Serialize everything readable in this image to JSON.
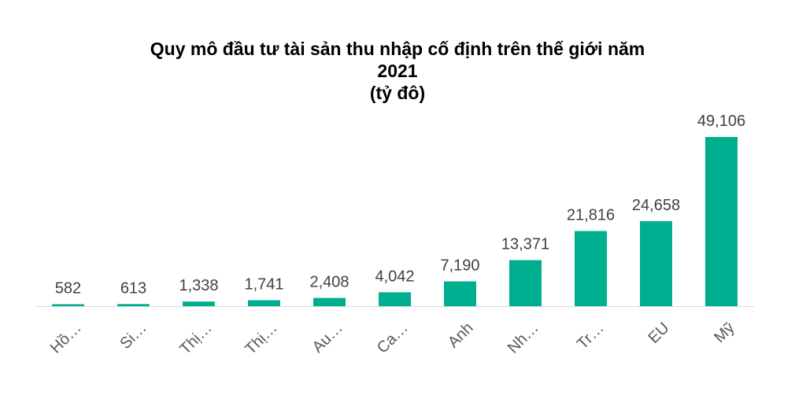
{
  "chart_data": {
    "type": "bar",
    "title_lines": [
      "Quy mô đầu tư tài sản thu nhập cố định trên thế giới năm",
      "2021",
      "(tỷ đô)"
    ],
    "categories": [
      "Hồ…",
      "Si…",
      "Thị…",
      "Thị…",
      "Au…",
      "Ca…",
      "Anh",
      "Nh…",
      "Tr…",
      "EU",
      "Mỹ"
    ],
    "values": [
      582,
      613,
      1338,
      1741,
      2408,
      4042,
      7190,
      13371,
      21816,
      24658,
      49106
    ],
    "data_labels": [
      "582",
      "613",
      "1,338",
      "1,741",
      "2,408",
      "4,042",
      "7,190",
      "13,371",
      "21,816",
      "24,658",
      "49,106"
    ],
    "bar_color": "#00AF8F",
    "axis_color": "#D9D9D9",
    "grid": false,
    "legend": "none",
    "ylim": [
      0,
      50000
    ]
  }
}
